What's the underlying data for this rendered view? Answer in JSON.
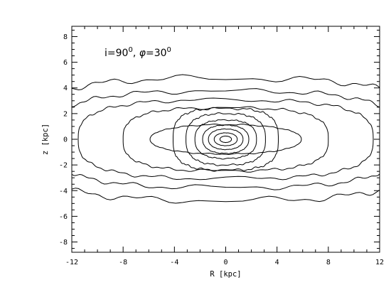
{
  "chart_data": {
    "type": "contour",
    "title": "",
    "annotation": {
      "i_text": "i=90",
      "i_sup": "0",
      "sep": ", ",
      "phi_symbol": "φ",
      "phi_text": "=30",
      "phi_sup": "0"
    },
    "xlabel": "R [kpc]",
    "ylabel": "z [kpc]",
    "xlim": [
      -12,
      12
    ],
    "ylim": [
      -8.8,
      8.8
    ],
    "x_ticks": [
      "-12",
      "-8",
      "-4",
      "0",
      "4",
      "8",
      "12"
    ],
    "y_ticks": [
      "-8",
      "-6",
      "-4",
      "-2",
      "0",
      "2",
      "4",
      "6",
      "8"
    ],
    "center": [
      0,
      0
    ],
    "levels": [
      {
        "a": 0.45,
        "b": 0.25,
        "n": 2.0
      },
      {
        "a": 0.9,
        "b": 0.5,
        "n": 2.1
      },
      {
        "a": 1.35,
        "b": 0.8,
        "n": 2.2
      },
      {
        "a": 1.8,
        "b": 1.1,
        "n": 2.3
      },
      {
        "a": 2.4,
        "b": 1.5,
        "n": 2.5
      },
      {
        "a": 3.1,
        "b": 2.0,
        "n": 2.7
      },
      {
        "a": 4.1,
        "b": 2.4,
        "n": 3.0
      },
      {
        "a": 5.9,
        "b": 1.15,
        "n": 2.2
      },
      {
        "a": 8.0,
        "b": 2.45,
        "n": 3.0
      },
      {
        "a": 11.5,
        "b": 3.05,
        "n": 3.0
      },
      {
        "a": 13.8,
        "b": 3.75,
        "n": 3.0
      },
      {
        "a": 16.0,
        "b": 4.75,
        "n": 3.0
      }
    ],
    "grid": false,
    "legend": "none"
  }
}
